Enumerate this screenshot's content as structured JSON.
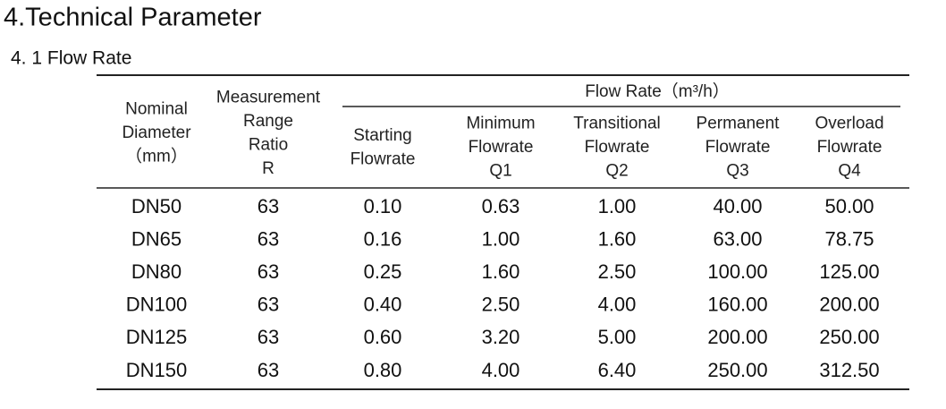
{
  "header": {
    "title": "4.Technical Parameter",
    "subtitle": "4. 1 Flow Rate"
  },
  "table": {
    "group_header": "Flow Rate（m³/h）",
    "columns": [
      [
        "Nominal",
        "Diameter",
        "（mm）"
      ],
      [
        "Measurement",
        "Range",
        "Ratio",
        "R"
      ],
      [
        "Starting",
        "Flowrate"
      ],
      [
        "Minimum",
        "Flowrate",
        "Q1"
      ],
      [
        "Transitional",
        "Flowrate",
        "Q2"
      ],
      [
        "Permanent",
        "Flowrate",
        "Q3"
      ],
      [
        "Overload",
        "Flowrate",
        "Q4"
      ]
    ],
    "rows": [
      [
        "DN50",
        "63",
        "0.10",
        "0.63",
        "1.00",
        "40.00",
        "50.00"
      ],
      [
        "DN65",
        "63",
        "0.16",
        "1.00",
        "1.60",
        "63.00",
        "78.75"
      ],
      [
        "DN80",
        "63",
        "0.25",
        "1.60",
        "2.50",
        "100.00",
        "125.00"
      ],
      [
        "DN100",
        "63",
        "0.40",
        "2.50",
        "4.00",
        "160.00",
        "200.00"
      ],
      [
        "DN125",
        "63",
        "0.60",
        "3.20",
        "5.00",
        "200.00",
        "250.00"
      ],
      [
        "DN150",
        "63",
        "0.80",
        "4.00",
        "6.40",
        "250.00",
        "312.50"
      ]
    ]
  }
}
